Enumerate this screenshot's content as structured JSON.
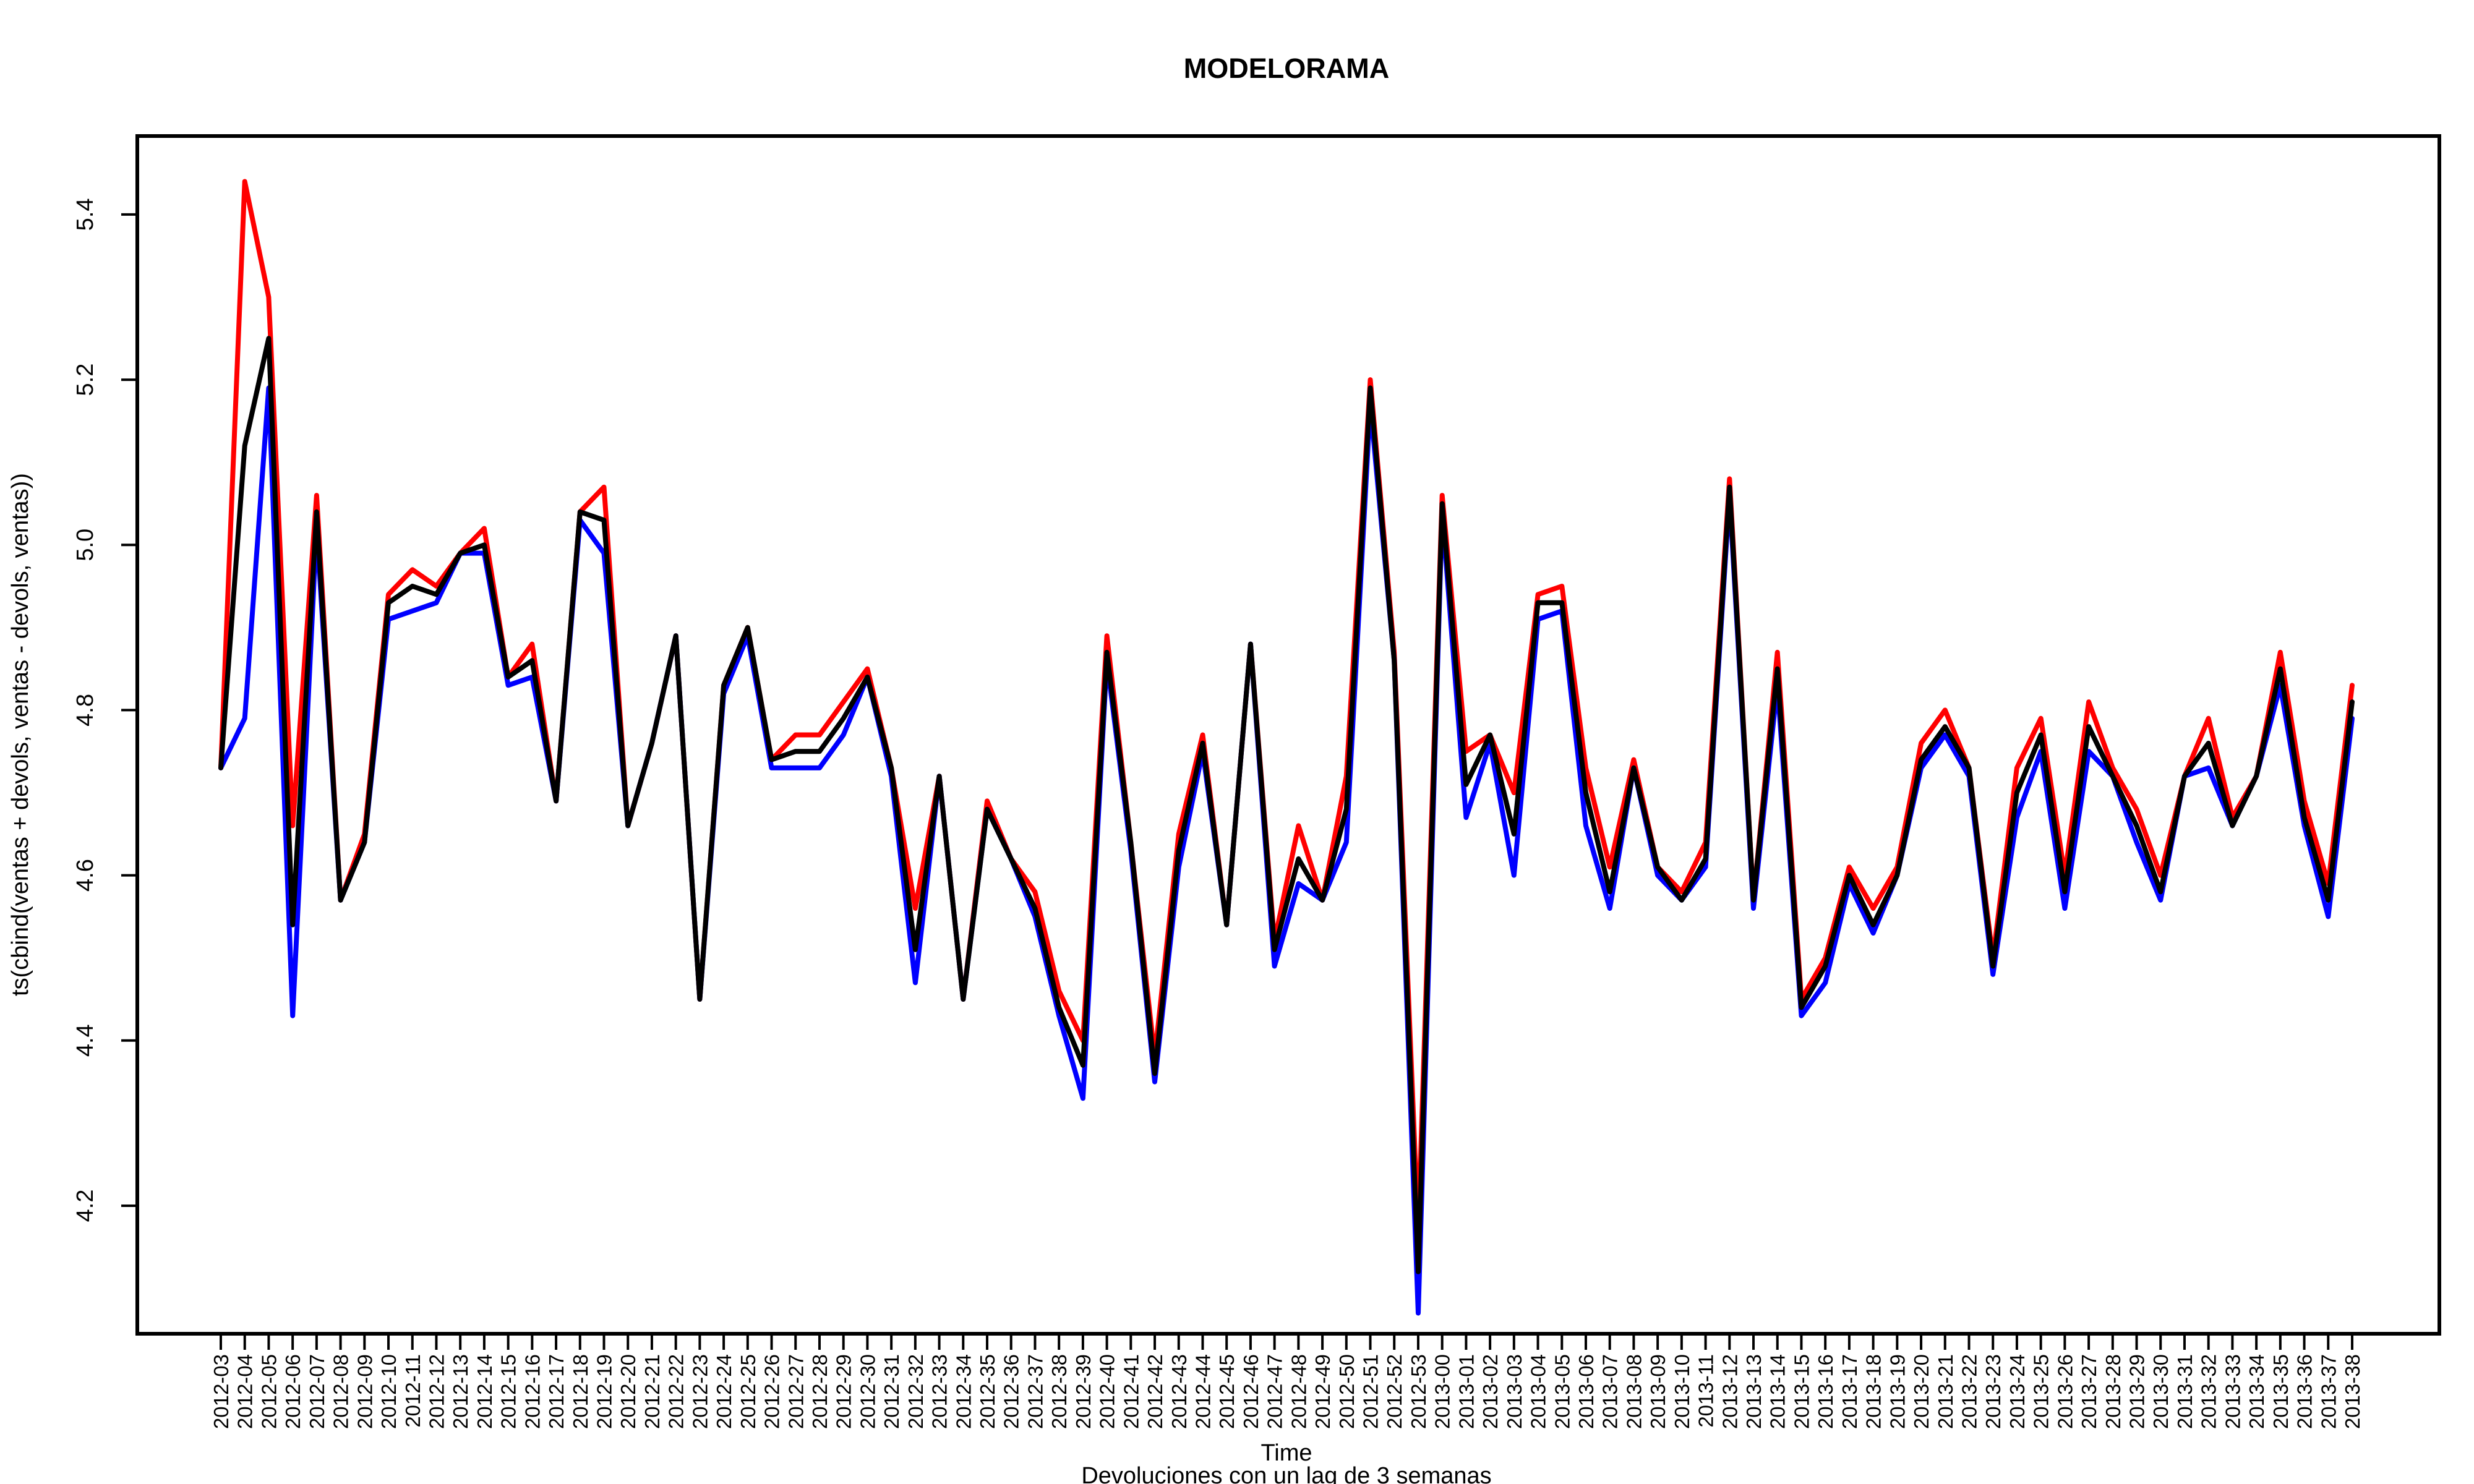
{
  "chart_data": {
    "type": "line",
    "title": "MODELORAMA",
    "xlabel": "Time",
    "ylabel": "ts(cbind(ventas + devols, ventas - devols, ventas))",
    "subtitle": "Devoluciones con un lag de 3 semanas",
    "ylim": [
      4.045,
      5.495
    ],
    "yticks": [
      4.2,
      4.4,
      4.6,
      4.8,
      5.0,
      5.2,
      5.4
    ],
    "grid": false,
    "legend": "none",
    "categories": [
      "2012-03",
      "2012-04",
      "2012-05",
      "2012-06",
      "2012-07",
      "2012-08",
      "2012-09",
      "2012-10",
      "2012-11",
      "2012-12",
      "2012-13",
      "2012-14",
      "2012-15",
      "2012-16",
      "2012-17",
      "2012-18",
      "2012-19",
      "2012-20",
      "2012-21",
      "2012-22",
      "2012-23",
      "2012-24",
      "2012-25",
      "2012-26",
      "2012-27",
      "2012-28",
      "2012-29",
      "2012-30",
      "2012-31",
      "2012-32",
      "2012-33",
      "2012-34",
      "2012-35",
      "2012-36",
      "2012-37",
      "2012-38",
      "2012-39",
      "2012-40",
      "2012-41",
      "2012-42",
      "2012-43",
      "2012-44",
      "2012-45",
      "2012-46",
      "2012-47",
      "2012-48",
      "2012-49",
      "2012-50",
      "2012-51",
      "2012-52",
      "2012-53",
      "2013-00",
      "2013-01",
      "2013-02",
      "2013-03",
      "2013-04",
      "2013-05",
      "2013-06",
      "2013-07",
      "2013-08",
      "2013-09",
      "2013-10",
      "2013-11",
      "2013-12",
      "2013-13",
      "2013-14",
      "2013-15",
      "2013-16",
      "2013-17",
      "2013-18",
      "2013-19",
      "2013-20",
      "2013-21",
      "2013-22",
      "2013-23",
      "2013-24",
      "2013-25",
      "2013-26",
      "2013-27",
      "2013-28",
      "2013-29",
      "2013-30",
      "2013-31",
      "2013-32",
      "2013-33",
      "2013-34",
      "2013-35",
      "2013-36",
      "2013-37",
      "2013-38"
    ],
    "series": [
      {
        "color": "#ff0000",
        "values": [
          4.73,
          5.44,
          5.3,
          4.66,
          5.06,
          4.57,
          4.65,
          4.94,
          4.97,
          4.95,
          4.99,
          5.02,
          4.84,
          4.88,
          4.69,
          5.04,
          5.07,
          4.66,
          4.76,
          4.89,
          4.45,
          4.83,
          4.9,
          4.74,
          4.77,
          4.77,
          4.81,
          4.85,
          4.73,
          4.56,
          4.72,
          4.45,
          4.69,
          4.62,
          4.58,
          4.46,
          4.4,
          4.89,
          4.64,
          4.38,
          4.65,
          4.77,
          4.54,
          4.88,
          4.52,
          4.66,
          4.57,
          4.72,
          5.2,
          4.87,
          4.17,
          5.06,
          4.75,
          4.77,
          4.7,
          4.94,
          4.95,
          4.73,
          4.61,
          4.74,
          4.61,
          4.58,
          4.64,
          5.08,
          4.57,
          4.87,
          4.45,
          4.5,
          4.61,
          4.56,
          4.61,
          4.76,
          4.8,
          4.73,
          4.5,
          4.73,
          4.79,
          4.6,
          4.81,
          4.73,
          4.68,
          4.6,
          4.72,
          4.79,
          4.67,
          4.72,
          4.87,
          4.69,
          4.59,
          4.83
        ]
      },
      {
        "color": "#0000ff",
        "values": [
          4.73,
          4.79,
          5.19,
          4.43,
          5.02,
          4.57,
          4.64,
          4.91,
          4.92,
          4.93,
          4.99,
          4.99,
          4.83,
          4.84,
          4.69,
          5.03,
          4.99,
          4.66,
          4.76,
          4.89,
          4.45,
          4.82,
          4.89,
          4.73,
          4.73,
          4.73,
          4.77,
          4.84,
          4.72,
          4.47,
          4.72,
          4.45,
          4.68,
          4.62,
          4.55,
          4.43,
          4.33,
          4.86,
          4.63,
          4.35,
          4.61,
          4.75,
          4.54,
          4.88,
          4.49,
          4.59,
          4.57,
          4.64,
          5.17,
          4.86,
          4.07,
          5.04,
          4.67,
          4.76,
          4.6,
          4.91,
          4.92,
          4.66,
          4.56,
          4.73,
          4.6,
          4.57,
          4.61,
          5.06,
          4.56,
          4.83,
          4.43,
          4.47,
          4.59,
          4.53,
          4.6,
          4.73,
          4.77,
          4.72,
          4.48,
          4.67,
          4.75,
          4.56,
          4.75,
          4.72,
          4.64,
          4.57,
          4.72,
          4.73,
          4.66,
          4.72,
          4.83,
          4.66,
          4.55,
          4.79
        ]
      },
      {
        "color": "#000000",
        "values": [
          4.73,
          5.12,
          5.25,
          4.54,
          5.04,
          4.57,
          4.64,
          4.93,
          4.95,
          4.94,
          4.99,
          5.0,
          4.84,
          4.86,
          4.69,
          5.04,
          5.03,
          4.66,
          4.76,
          4.89,
          4.45,
          4.83,
          4.9,
          4.74,
          4.75,
          4.75,
          4.79,
          4.84,
          4.73,
          4.51,
          4.72,
          4.45,
          4.68,
          4.62,
          4.56,
          4.44,
          4.37,
          4.87,
          4.64,
          4.36,
          4.63,
          4.76,
          4.54,
          4.88,
          4.51,
          4.62,
          4.57,
          4.68,
          5.19,
          4.86,
          4.12,
          5.05,
          4.71,
          4.77,
          4.65,
          4.93,
          4.93,
          4.7,
          4.58,
          4.73,
          4.61,
          4.57,
          4.62,
          5.07,
          4.57,
          4.85,
          4.44,
          4.49,
          4.6,
          4.54,
          4.6,
          4.74,
          4.78,
          4.73,
          4.49,
          4.7,
          4.77,
          4.58,
          4.78,
          4.72,
          4.66,
          4.58,
          4.72,
          4.76,
          4.66,
          4.72,
          4.85,
          4.67,
          4.57,
          4.81
        ]
      }
    ]
  }
}
